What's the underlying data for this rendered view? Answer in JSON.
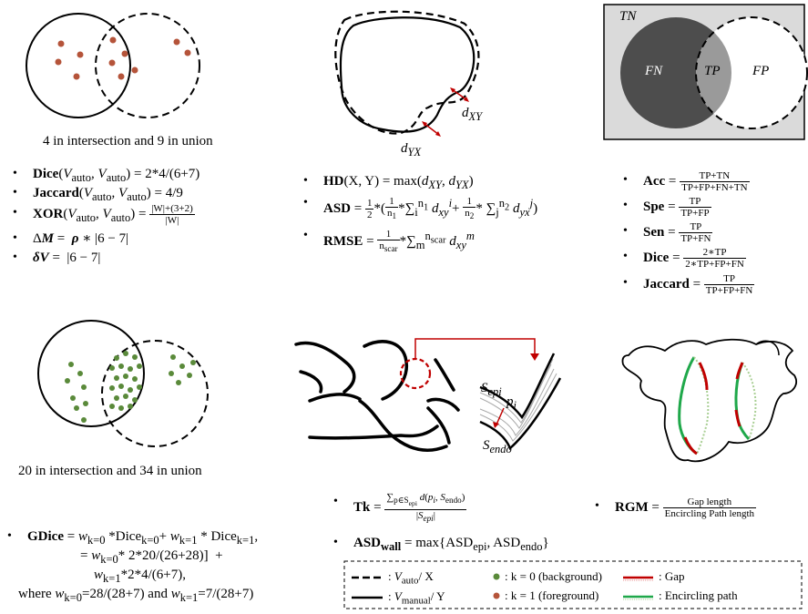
{
  "panel1": {
    "caption": "4 in intersection and 9 in union",
    "lines": [
      {
        "bold": "Dice",
        "rest": "(V_auto, V_auto) = 2*4/(6+7)"
      },
      {
        "bold": "Jaccard",
        "rest": "(V_auto, V_auto) = 4/9"
      },
      {
        "bold": "XOR",
        "rest": "(V_auto, V_auto) = (|W|+(3+2))/|W|"
      },
      {
        "bold": "ΔM",
        "rest": "= ρ * |6 − 7|"
      },
      {
        "bold": "δV",
        "rest": "= |6 − 7|"
      }
    ],
    "dot_color": "#b5543a"
  },
  "panel2": {
    "label_dxy": "d_XY",
    "label_dyx": "d_YX",
    "lines": [
      {
        "bold": "HD",
        "rest": "(X, Y) = max(d_XY, d_YX)"
      },
      {
        "bold": "ASD",
        "rest": "= 1/2 *(1/n1 *Σ d_xy + 1/n2 * Σ d_yx)"
      },
      {
        "bold": "RMSE",
        "rest": "= 1/n_scar *Σ d_xy"
      }
    ],
    "arrow_color": "#c00000"
  },
  "panel3": {
    "labels": {
      "tn": "TN",
      "fn": "FN",
      "tp": "TP",
      "fp": "FP"
    },
    "lines": [
      {
        "bold": "Acc",
        "num": "TP+TN",
        "den": "TP+FP+FN+TN"
      },
      {
        "bold": "Spe",
        "num": "TP",
        "den": "TP+FP"
      },
      {
        "bold": "Sen",
        "num": "TP",
        "den": "TP+FN"
      },
      {
        "bold": "Dice",
        "num": "2∗TP",
        "den": "2∗TP+FP+FN"
      },
      {
        "bold": "Jaccard",
        "num": "TP",
        "den": "TP+FP+FN"
      }
    ],
    "colors": {
      "bg": "#dadada",
      "fn": "#4d4d4d",
      "tp": "#9a9a9a"
    }
  },
  "panel4": {
    "caption": "20 in intersection and 34 in union",
    "gdice": {
      "bold": "GDice",
      "l1": "= w_k=0 *Dice_k=0 + w_k=1 * Dice_k=1,",
      "l2": "= w_k=0 * 2*20/(26+28)]  +",
      "l3": "w_k=1 *2*4/(6+7),",
      "l4": "where w_k=0 =28/(28+7) and w_k=1 =7/(28+7)"
    },
    "dot_color": "#5a8a3a"
  },
  "panel5": {
    "s_epi": "S_epi",
    "p_i": "p_i",
    "s_endo": "S_endo",
    "tk": {
      "bold": "Tk",
      "num": "Σ d(p_i, S_endo)",
      "den": "|S_epi|"
    },
    "asd_wall": {
      "bold": "ASD_wall",
      "rest": "= max{ASD_epi, ASD_endo}"
    }
  },
  "panel6": {
    "rgm": {
      "bold": "RGM",
      "num": "Gap length",
      "den": "Encircling Path length"
    }
  },
  "legend": {
    "dashed": ": V_auto/ X",
    "solid": ": V_manual/ Y",
    "k0": ": k = 0 (background)",
    "k1": ": k = 1 (foreground)",
    "gap": ": Gap",
    "encircle": ": Encircling path"
  }
}
